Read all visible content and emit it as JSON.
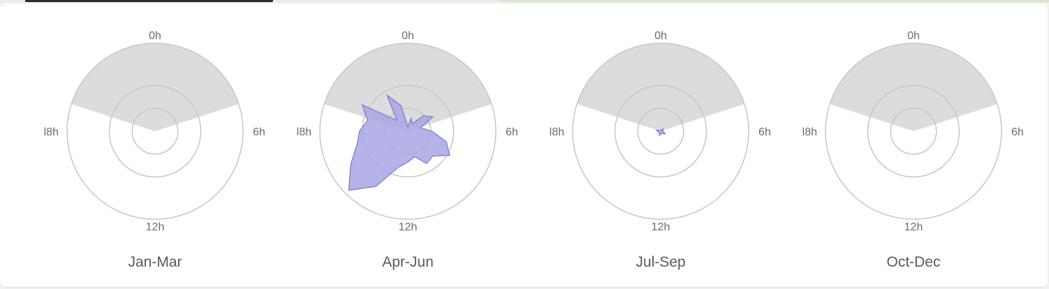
{
  "colors": {
    "night_shade": "#dcdcdc",
    "ring_stroke": "#c6c6c6",
    "data_fill": "#a8a6e4",
    "data_stroke": "#7a77cf"
  },
  "axis_labels": {
    "top": "0h",
    "right": "6h",
    "bottom": "12h",
    "left": "l8h"
  },
  "chart_data": {
    "type": "radar",
    "angular_axis": "hour of day (0h top, clockwise)",
    "ring_count": 3,
    "shaded_night_sector_hours": [
      19.2,
      4.8
    ],
    "panels": [
      {
        "label": "Jan-Mar",
        "points": []
      },
      {
        "label": "Apr-Jun",
        "points": [
          {
            "hour": 0,
            "value": 0.1
          },
          {
            "hour": 1,
            "value": 0.3
          },
          {
            "hour": 2,
            "value": 0.2
          },
          {
            "hour": 3,
            "value": 0.5
          },
          {
            "hour": 4,
            "value": 0.65
          },
          {
            "hour": 5,
            "value": 0.3
          },
          {
            "hour": 6,
            "value": 0.55
          },
          {
            "hour": 7,
            "value": 0.9
          },
          {
            "hour": 8,
            "value": 1.1
          },
          {
            "hour": 9,
            "value": 0.8
          },
          {
            "hour": 10,
            "value": 0.85
          },
          {
            "hour": 11,
            "value": 0.6
          },
          {
            "hour": 12,
            "value": 0.7
          },
          {
            "hour": 13,
            "value": 0.85
          },
          {
            "hour": 14,
            "value": 1.45
          },
          {
            "hour": 15,
            "value": 1.9
          },
          {
            "hour": 16,
            "value": 1.5
          },
          {
            "hour": 17,
            "value": 1.2
          },
          {
            "hour": 18,
            "value": 1.1
          },
          {
            "hour": 19,
            "value": 0.95
          },
          {
            "hour": 20,
            "value": 1.2
          },
          {
            "hour": 21,
            "value": 0.35
          },
          {
            "hour": 22,
            "value": 0.95
          },
          {
            "hour": 23,
            "value": 0.6
          }
        ]
      },
      {
        "label": "Jul-Sep",
        "points": [
          {
            "hour": 0,
            "value": 0.02
          },
          {
            "hour": 3,
            "value": 0.08
          },
          {
            "hour": 5,
            "value": 0.05
          },
          {
            "hour": 8,
            "value": 0.12
          },
          {
            "hour": 11,
            "value": 0.05
          },
          {
            "hour": 13,
            "value": 0.1
          },
          {
            "hour": 16,
            "value": 0.05
          },
          {
            "hour": 19,
            "value": 0.1
          },
          {
            "hour": 21,
            "value": 0.03
          }
        ]
      },
      {
        "label": "Oct-Dec",
        "points": []
      }
    ]
  }
}
